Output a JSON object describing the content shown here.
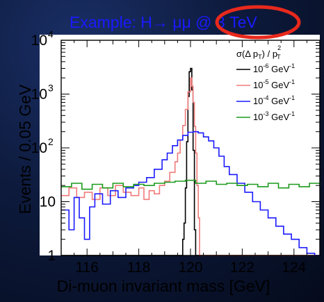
{
  "chart_data": {
    "type": "line",
    "title": "Example:  H→ μμ @ 3 TeV",
    "title_color": "#1a1aff",
    "highlight_color": "#e8291c",
    "xlabel": "Di-muon invariant mass [GeV]",
    "ylabel": "Events / 0.05 GeV",
    "xlim": [
      115,
      125
    ],
    "ylim": [
      1,
      10000
    ],
    "yscale": "log",
    "x_ticks": [
      "116",
      "118",
      "120",
      "122",
      "124"
    ],
    "y_tick_base": "10",
    "y_tick_one": "1",
    "y_tick_exponents": [
      "2",
      "3",
      "4"
    ],
    "legend_title": "σ(Δ p",
    "legend_title_sub": "T",
    "legend_title_tail": ") / p",
    "legend_title_sup": "2",
    "legend_title_sub2": "T",
    "legend_placement": "top-right",
    "series": [
      {
        "name_base": "10",
        "name_exp": "-6",
        "name_unit": " GeV",
        "name_unit_exp": "-1",
        "color": "#000000",
        "points": [
          [
            115,
            1
          ],
          [
            119.65,
            1
          ],
          [
            119.7,
            2
          ],
          [
            119.75,
            4
          ],
          [
            119.8,
            18
          ],
          [
            119.85,
            130
          ],
          [
            119.9,
            900
          ],
          [
            119.95,
            2600
          ],
          [
            120,
            3000
          ],
          [
            120.05,
            1200
          ],
          [
            120.1,
            90
          ],
          [
            120.15,
            3
          ],
          [
            120.2,
            1
          ],
          [
            125,
            1
          ]
        ]
      },
      {
        "name_base": "10",
        "name_exp": "-5",
        "name_unit": " GeV",
        "name_unit_exp": "-1",
        "color": "#f07a7a",
        "points": [
          [
            115,
            13
          ],
          [
            115.3,
            18
          ],
          [
            115.6,
            12
          ],
          [
            115.9,
            15
          ],
          [
            116.2,
            11
          ],
          [
            116.5,
            18
          ],
          [
            116.8,
            13
          ],
          [
            117.1,
            20
          ],
          [
            117.4,
            15
          ],
          [
            117.7,
            13
          ],
          [
            118,
            18
          ],
          [
            118.2,
            11
          ],
          [
            118.4,
            16
          ],
          [
            118.6,
            14
          ],
          [
            118.8,
            20
          ],
          [
            119,
            24
          ],
          [
            119.2,
            35
          ],
          [
            119.4,
            55
          ],
          [
            119.5,
            80
          ],
          [
            119.6,
            140
          ],
          [
            119.7,
            260
          ],
          [
            119.8,
            520
          ],
          [
            119.9,
            1100
          ],
          [
            120,
            2000
          ],
          [
            120.05,
            1400
          ],
          [
            120.1,
            700
          ],
          [
            120.15,
            250
          ],
          [
            120.2,
            80
          ],
          [
            120.25,
            20
          ],
          [
            120.3,
            5
          ],
          [
            120.35,
            1
          ],
          [
            125,
            1
          ]
        ]
      },
      {
        "name_base": "10",
        "name_exp": "-4",
        "name_unit": " GeV",
        "name_unit_exp": "-1",
        "color": "#1a1aff",
        "points": [
          [
            115,
            7
          ],
          [
            115.3,
            3
          ],
          [
            115.5,
            12
          ],
          [
            115.7,
            5
          ],
          [
            115.9,
            2
          ],
          [
            116.1,
            8
          ],
          [
            116.3,
            14
          ],
          [
            116.6,
            9
          ],
          [
            116.9,
            16
          ],
          [
            117.2,
            12
          ],
          [
            117.5,
            18
          ],
          [
            117.8,
            20
          ],
          [
            118,
            23
          ],
          [
            118.3,
            28
          ],
          [
            118.6,
            40
          ],
          [
            118.9,
            60
          ],
          [
            119.1,
            80
          ],
          [
            119.3,
            110
          ],
          [
            119.5,
            140
          ],
          [
            119.7,
            170
          ],
          [
            119.9,
            195
          ],
          [
            120.1,
            200
          ],
          [
            120.3,
            190
          ],
          [
            120.5,
            160
          ],
          [
            120.7,
            135
          ],
          [
            120.9,
            100
          ],
          [
            121.1,
            70
          ],
          [
            121.3,
            45
          ],
          [
            121.5,
            32
          ],
          [
            121.8,
            22
          ],
          [
            122.1,
            15
          ],
          [
            122.4,
            10
          ],
          [
            122.7,
            7
          ],
          [
            123,
            5
          ],
          [
            123.3,
            3.5
          ],
          [
            123.6,
            2.5
          ],
          [
            123.9,
            2
          ],
          [
            124.2,
            1.4
          ],
          [
            124.5,
            1.1
          ],
          [
            124.8,
            1
          ]
        ]
      },
      {
        "name_base": "10",
        "name_exp": "-3",
        "name_unit": " GeV",
        "name_unit_exp": "-1",
        "color": "#1a9a1a",
        "points": [
          [
            115,
            19
          ],
          [
            115.4,
            22
          ],
          [
            115.8,
            17
          ],
          [
            116.2,
            21
          ],
          [
            116.6,
            18
          ],
          [
            117,
            22
          ],
          [
            117.4,
            19
          ],
          [
            117.8,
            21
          ],
          [
            118.2,
            20
          ],
          [
            118.6,
            22
          ],
          [
            119,
            23
          ],
          [
            119.4,
            24
          ],
          [
            119.8,
            25
          ],
          [
            120.2,
            22
          ],
          [
            120.6,
            24
          ],
          [
            121,
            21
          ],
          [
            121.4,
            22
          ],
          [
            121.8,
            20
          ],
          [
            122.2,
            21
          ],
          [
            122.6,
            19
          ],
          [
            123,
            22
          ],
          [
            123.4,
            18
          ],
          [
            123.8,
            21
          ],
          [
            124.2,
            19
          ],
          [
            124.6,
            22
          ],
          [
            125,
            20
          ]
        ]
      }
    ]
  }
}
